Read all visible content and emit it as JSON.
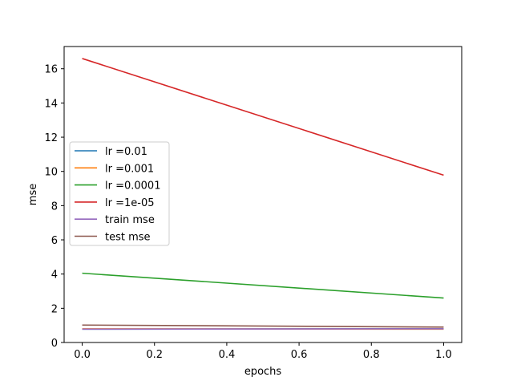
{
  "chart_data": {
    "type": "line",
    "title": "",
    "xlabel": "epochs",
    "ylabel": "mse",
    "xlim": [
      -0.05,
      1.05
    ],
    "ylim": [
      0,
      17.3
    ],
    "xticks": [
      0.0,
      0.2,
      0.4,
      0.6,
      0.8,
      1.0
    ],
    "xtick_labels": [
      "0.0",
      "0.2",
      "0.4",
      "0.6",
      "0.8",
      "1.0"
    ],
    "yticks": [
      0,
      2,
      4,
      6,
      8,
      10,
      12,
      14,
      16
    ],
    "ytick_labels": [
      "0",
      "2",
      "4",
      "6",
      "8",
      "10",
      "12",
      "14",
      "16"
    ],
    "grid": false,
    "legend_position": "center-left",
    "x": [
      0,
      1
    ],
    "series": [
      {
        "name": "lr =0.01",
        "color": "#1f77b4",
        "values": [
          0.78,
          0.8
        ]
      },
      {
        "name": "lr =0.001",
        "color": "#ff7f0e",
        "values": [
          0.8,
          0.78
        ]
      },
      {
        "name": "lr =0.0001",
        "color": "#2ca02c",
        "values": [
          4.05,
          2.6
        ]
      },
      {
        "name": "lr =1e-05",
        "color": "#d62728",
        "values": [
          16.6,
          9.78
        ]
      },
      {
        "name": "train mse",
        "color": "#9467bd",
        "values": [
          0.78,
          0.8
        ]
      },
      {
        "name": "test mse",
        "color": "#8c564b",
        "values": [
          1.02,
          0.9
        ]
      }
    ]
  }
}
